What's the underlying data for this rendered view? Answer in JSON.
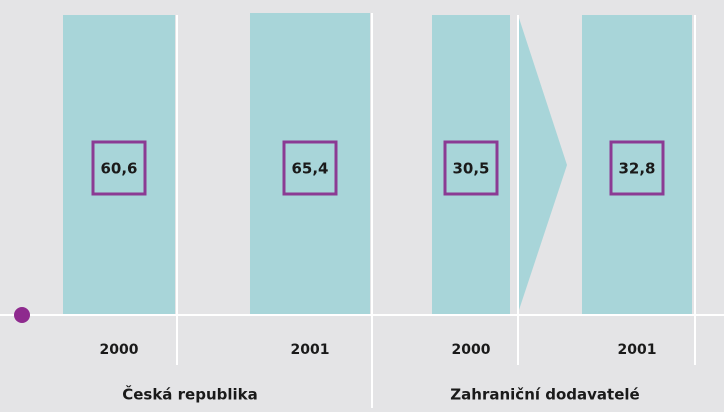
{
  "groups": [
    {
      "label": "Česká republika",
      "items": [
        {
          "year": "2000",
          "value": "60,6"
        },
        {
          "year": "2001",
          "value": "65,4"
        }
      ]
    },
    {
      "label": "Zahraniční dodavatelé",
      "items": [
        {
          "year": "2000",
          "value": "30,5"
        },
        {
          "year": "2001",
          "value": "32,8"
        }
      ]
    }
  ]
}
